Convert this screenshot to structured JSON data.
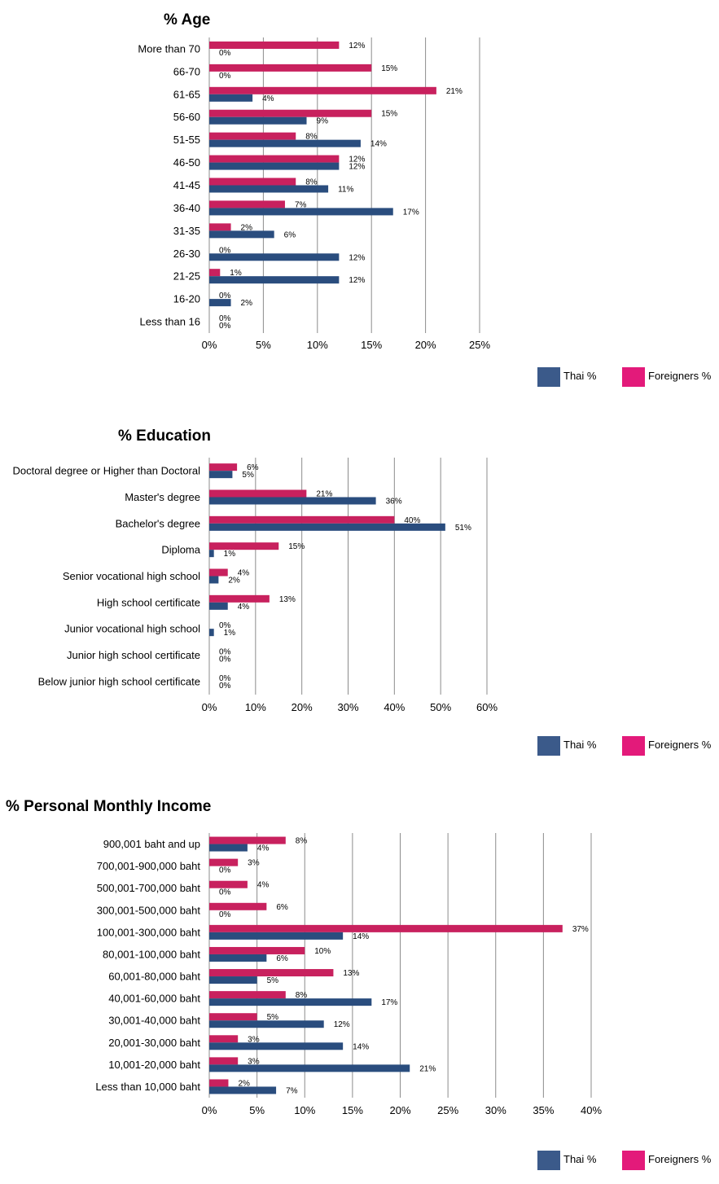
{
  "chart_data": [
    {
      "type": "bar",
      "orientation": "horizontal",
      "title": "% Age",
      "categories": [
        "More than 70",
        "66-70",
        "61-65",
        "56-60",
        "51-55",
        "46-50",
        "41-45",
        "36-40",
        "31-35",
        "26-30",
        "21-25",
        "16-20",
        "Less than 16"
      ],
      "series": [
        {
          "name": "Foreigners %",
          "color": "#c8215e",
          "values": [
            12,
            15,
            21,
            15,
            8,
            12,
            8,
            7,
            2,
            0,
            1,
            0,
            0
          ]
        },
        {
          "name": "Thai %",
          "color": "#2a4d7e",
          "values": [
            0,
            0,
            4,
            9,
            14,
            12,
            11,
            17,
            6,
            12,
            12,
            2,
            0
          ]
        }
      ],
      "xlim": [
        0,
        25
      ],
      "xticks": [
        0,
        5,
        10,
        15,
        20,
        25
      ],
      "tick_suffix": "%",
      "legend": [
        {
          "label": "Thai %",
          "color": "#3b5a8a"
        },
        {
          "label": "Foreigners %",
          "color": "#e31a7a"
        }
      ]
    },
    {
      "type": "bar",
      "orientation": "horizontal",
      "title": "% Education",
      "categories": [
        "Doctoral degree or Higher than Doctoral",
        "Master's degree",
        "Bachelor's degree",
        "Diploma",
        "Senior vocational high school",
        "High school certificate",
        "Junior vocational high school",
        "Junior high school certificate",
        "Below junior high school certificate"
      ],
      "series": [
        {
          "name": "Foreigners %",
          "color": "#c8215e",
          "values": [
            6,
            21,
            40,
            15,
            4,
            13,
            0,
            0,
            0
          ]
        },
        {
          "name": "Thai %",
          "color": "#2a4d7e",
          "values": [
            5,
            36,
            51,
            1,
            2,
            4,
            1,
            0,
            0
          ]
        }
      ],
      "xlim": [
        0,
        60
      ],
      "xticks": [
        0,
        10,
        20,
        30,
        40,
        50,
        60
      ],
      "tick_suffix": "%",
      "legend": [
        {
          "label": "Thai %",
          "color": "#3b5a8a"
        },
        {
          "label": "Foreigners %",
          "color": "#e31a7a"
        }
      ]
    },
    {
      "type": "bar",
      "orientation": "horizontal",
      "title": "% Personal Monthly Income",
      "categories": [
        "900,001 baht and up",
        "700,001-900,000 baht",
        "500,001-700,000 baht",
        "300,001-500,000 baht",
        "100,001-300,000 baht",
        "80,001-100,000 baht",
        "60,001-80,000 baht",
        "40,001-60,000 baht",
        "30,001-40,000 baht",
        "20,001-30,000 baht",
        "10,001-20,000 baht",
        "Less than 10,000 baht"
      ],
      "series": [
        {
          "name": "Foreigners %",
          "color": "#c8215e",
          "values": [
            8,
            3,
            4,
            6,
            37,
            10,
            13,
            8,
            5,
            3,
            3,
            2
          ]
        },
        {
          "name": "Thai %",
          "color": "#2a4d7e",
          "values": [
            4,
            0,
            0,
            0,
            14,
            6,
            5,
            17,
            12,
            14,
            21,
            7
          ]
        }
      ],
      "xlim": [
        0,
        40
      ],
      "xticks": [
        0,
        5,
        10,
        15,
        20,
        25,
        30,
        35,
        40
      ],
      "tick_suffix": "%",
      "legend": [
        {
          "label": "Thai %",
          "color": "#3b5a8a"
        },
        {
          "label": "Foreigners %",
          "color": "#e31a7a"
        }
      ]
    }
  ]
}
